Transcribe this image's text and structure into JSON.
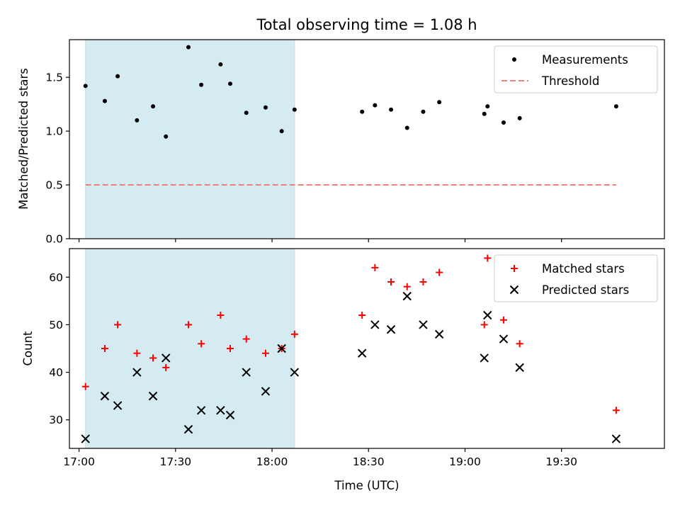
{
  "chart_data": [
    {
      "type": "scatter",
      "title": "Total observing time = 1.08 h",
      "xlabel": "",
      "ylabel": "Matched/Predicted stars",
      "ylim": [
        0,
        1.85
      ],
      "yticks": [
        "0.0",
        "0.5",
        "1.0",
        "1.5"
      ],
      "ytick_values": [
        0,
        0.5,
        1.0,
        1.5
      ],
      "xlim": [
        "16:57",
        "20:02"
      ],
      "highlight_span": [
        "17:02",
        "18:07"
      ],
      "legend": {
        "placement": "top-right",
        "entries": [
          "Measurements",
          "Threshold"
        ]
      },
      "series": [
        {
          "name": "Measurements",
          "marker": "dot",
          "color": "#000000",
          "x": [
            "17:02",
            "17:08",
            "17:12",
            "17:18",
            "17:23",
            "17:27",
            "17:34",
            "17:38",
            "17:44",
            "17:47",
            "17:52",
            "17:58",
            "18:03",
            "18:07",
            "18:28",
            "18:32",
            "18:37",
            "18:42",
            "18:47",
            "18:52",
            "19:06",
            "19:07",
            "19:12",
            "19:17",
            "19:47"
          ],
          "y": [
            1.42,
            1.28,
            1.51,
            1.1,
            1.23,
            0.95,
            1.78,
            1.43,
            1.62,
            1.44,
            1.17,
            1.22,
            1.0,
            1.2,
            1.18,
            1.24,
            1.2,
            1.03,
            1.18,
            1.27,
            1.16,
            1.23,
            1.08,
            1.12,
            1.23
          ]
        },
        {
          "name": "Threshold",
          "line": "dashed",
          "color": "#f08080",
          "x": [
            "17:02",
            "19:47"
          ],
          "y": [
            0.5,
            0.5
          ]
        }
      ]
    },
    {
      "type": "scatter",
      "title": "",
      "xlabel": "Time (UTC)",
      "ylabel": "Count",
      "ylim": [
        24,
        66
      ],
      "yticks": [
        "30",
        "40",
        "50",
        "60"
      ],
      "ytick_values": [
        30,
        40,
        50,
        60
      ],
      "xlim": [
        "16:57",
        "20:02"
      ],
      "xticks": [
        "17:00",
        "17:30",
        "18:00",
        "18:30",
        "19:00",
        "19:30"
      ],
      "highlight_span": [
        "17:02",
        "18:07"
      ],
      "legend": {
        "placement": "top-right",
        "entries": [
          "Matched stars",
          "Predicted stars"
        ]
      },
      "series": [
        {
          "name": "Matched stars",
          "marker": "plus",
          "color": "#ff0000",
          "x": [
            "17:02",
            "17:08",
            "17:12",
            "17:18",
            "17:23",
            "17:27",
            "17:34",
            "17:38",
            "17:44",
            "17:47",
            "17:52",
            "17:58",
            "18:03",
            "18:07",
            "18:28",
            "18:32",
            "18:37",
            "18:42",
            "18:47",
            "18:52",
            "19:06",
            "19:07",
            "19:12",
            "19:17",
            "19:47"
          ],
          "y": [
            37,
            45,
            50,
            44,
            43,
            41,
            50,
            46,
            52,
            45,
            47,
            44,
            45,
            48,
            52,
            62,
            59,
            58,
            59,
            61,
            50,
            64,
            51,
            46,
            32
          ]
        },
        {
          "name": "Predicted stars",
          "marker": "x",
          "color": "#000000",
          "x": [
            "17:02",
            "17:08",
            "17:12",
            "17:18",
            "17:23",
            "17:27",
            "17:34",
            "17:38",
            "17:44",
            "17:47",
            "17:52",
            "17:58",
            "18:03",
            "18:07",
            "18:28",
            "18:32",
            "18:37",
            "18:42",
            "18:47",
            "18:52",
            "19:06",
            "19:07",
            "19:12",
            "19:17",
            "19:47"
          ],
          "y": [
            26,
            35,
            33,
            40,
            35,
            43,
            28,
            32,
            32,
            31,
            40,
            36,
            45,
            40,
            44,
            50,
            49,
            56,
            50,
            48,
            43,
            52,
            47,
            41,
            26
          ]
        }
      ]
    }
  ],
  "colors": {
    "span": "#d4ebf1",
    "threshold": "#f08080",
    "matched": "#ff0000",
    "predicted": "#000000"
  }
}
